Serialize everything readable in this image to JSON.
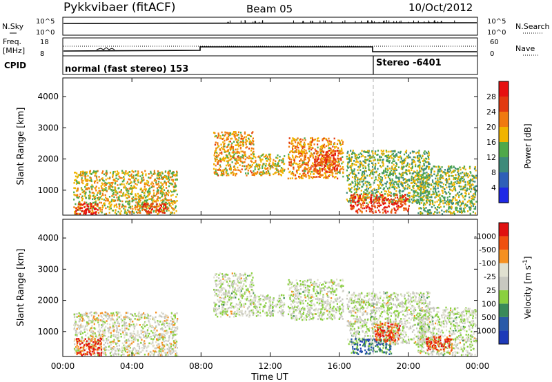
{
  "header": {
    "station": "Pykkvibaer (fitACF)",
    "beam": "Beam 05",
    "date": "10/Oct/2012"
  },
  "strip": {
    "nsky_label": "N.Sky",
    "nsearch_label": "N.Search",
    "nsky_ticks": [
      "10^5",
      "10^0"
    ],
    "nsearch_ticks": [
      "10^5",
      "10^0"
    ],
    "freq_label_1": "Freq.",
    "freq_label_2": "[MHz]",
    "freq_ticks": [
      "18",
      "8"
    ],
    "nave_label": "Nave",
    "nave_ticks": [
      "60",
      "0"
    ],
    "cpid_label": "CPID",
    "cpid_segments": [
      {
        "name": "normal (fast stereo) 153",
        "start_hour": 0
      },
      {
        "name": "Stereo -6401",
        "start_hour": 18
      }
    ]
  },
  "colors": {
    "dashed_marker": "#b0b0b0"
  },
  "chart_data": [
    {
      "type": "heatmap",
      "quantity": "power",
      "ylabel": "Slant Range [km]",
      "yticks": [
        1000,
        2000,
        3000,
        4000
      ],
      "ylim": [
        200,
        4600
      ],
      "xlim_hours": [
        0,
        24
      ],
      "colorbar_label": "Power [dB]",
      "colorbar_ticks": [
        "4",
        "8",
        "12",
        "16",
        "20",
        "24",
        "28"
      ],
      "colorbar_colors": [
        "#1e28e6",
        "#2e5fb8",
        "#3d8a7a",
        "#4fa84a",
        "#f0b400",
        "#f07a10",
        "#e23a10",
        "#e61010"
      ],
      "regions": [
        {
          "t": [
            0.6,
            6.6
          ],
          "r": [
            250,
            1650
          ],
          "level": 0.55
        },
        {
          "t": [
            0.7,
            2.0
          ],
          "r": [
            250,
            600
          ],
          "level": 0.95
        },
        {
          "t": [
            4.5,
            6.0
          ],
          "r": [
            300,
            600
          ],
          "level": 0.85
        },
        {
          "t": [
            8.7,
            11.0
          ],
          "r": [
            1500,
            2900
          ],
          "level": 0.6
        },
        {
          "t": [
            11.0,
            12.8
          ],
          "r": [
            1500,
            2200
          ],
          "level": 0.55
        },
        {
          "t": [
            13.0,
            16.2
          ],
          "r": [
            1400,
            2700
          ],
          "level": 0.65
        },
        {
          "t": [
            14.5,
            16.0
          ],
          "r": [
            1600,
            2300
          ],
          "level": 0.8
        },
        {
          "t": [
            16.4,
            21.2
          ],
          "r": [
            600,
            2300
          ],
          "level": 0.45
        },
        {
          "t": [
            16.6,
            20.0
          ],
          "r": [
            300,
            900
          ],
          "level": 0.85
        },
        {
          "t": [
            20.5,
            23.9
          ],
          "r": [
            250,
            1800
          ],
          "level": 0.45
        }
      ]
    },
    {
      "type": "heatmap",
      "quantity": "velocity",
      "ylabel": "Slant Range [km]",
      "yticks": [
        1000,
        2000,
        3000,
        4000
      ],
      "ylim": [
        200,
        4600
      ],
      "xlim_hours": [
        0,
        24
      ],
      "xticks": [
        "00:00",
        "04:00",
        "08:00",
        "12:00",
        "16:00",
        "20:00",
        "00:00"
      ],
      "xlabel": "Time UT",
      "colorbar_label": "Velocity [m s^-1]",
      "colorbar_ticks": [
        "1000",
        "500",
        "100",
        "25",
        "-25",
        "-100",
        "-500",
        "-1000"
      ],
      "colorbar_colors": [
        "#e01010",
        "#f05010",
        "#f59020",
        "#e0e0d0",
        "#c8c8c0",
        "#8ad040",
        "#3a8a5a",
        "#2a5aa8",
        "#1e3ab8"
      ],
      "regions": [
        {
          "t": [
            0.6,
            6.6
          ],
          "r": [
            250,
            1650
          ],
          "level": 0.45
        },
        {
          "t": [
            0.7,
            2.2
          ],
          "r": [
            250,
            800
          ],
          "level": 0.15
        },
        {
          "t": [
            8.7,
            11.0
          ],
          "r": [
            1500,
            2900
          ],
          "level": 0.5
        },
        {
          "t": [
            11.0,
            12.8
          ],
          "r": [
            1500,
            2200
          ],
          "level": 0.5
        },
        {
          "t": [
            13.0,
            16.2
          ],
          "r": [
            1400,
            2700
          ],
          "level": 0.5
        },
        {
          "t": [
            16.4,
            21.2
          ],
          "r": [
            600,
            2300
          ],
          "level": 0.5
        },
        {
          "t": [
            16.6,
            19.0
          ],
          "r": [
            300,
            800
          ],
          "level": 0.78
        },
        {
          "t": [
            18.0,
            19.5
          ],
          "r": [
            700,
            1300
          ],
          "level": 0.15
        },
        {
          "t": [
            20.5,
            23.9
          ],
          "r": [
            250,
            1800
          ],
          "level": 0.5
        },
        {
          "t": [
            21.0,
            22.5
          ],
          "r": [
            400,
            900
          ],
          "level": 0.12
        }
      ]
    }
  ]
}
